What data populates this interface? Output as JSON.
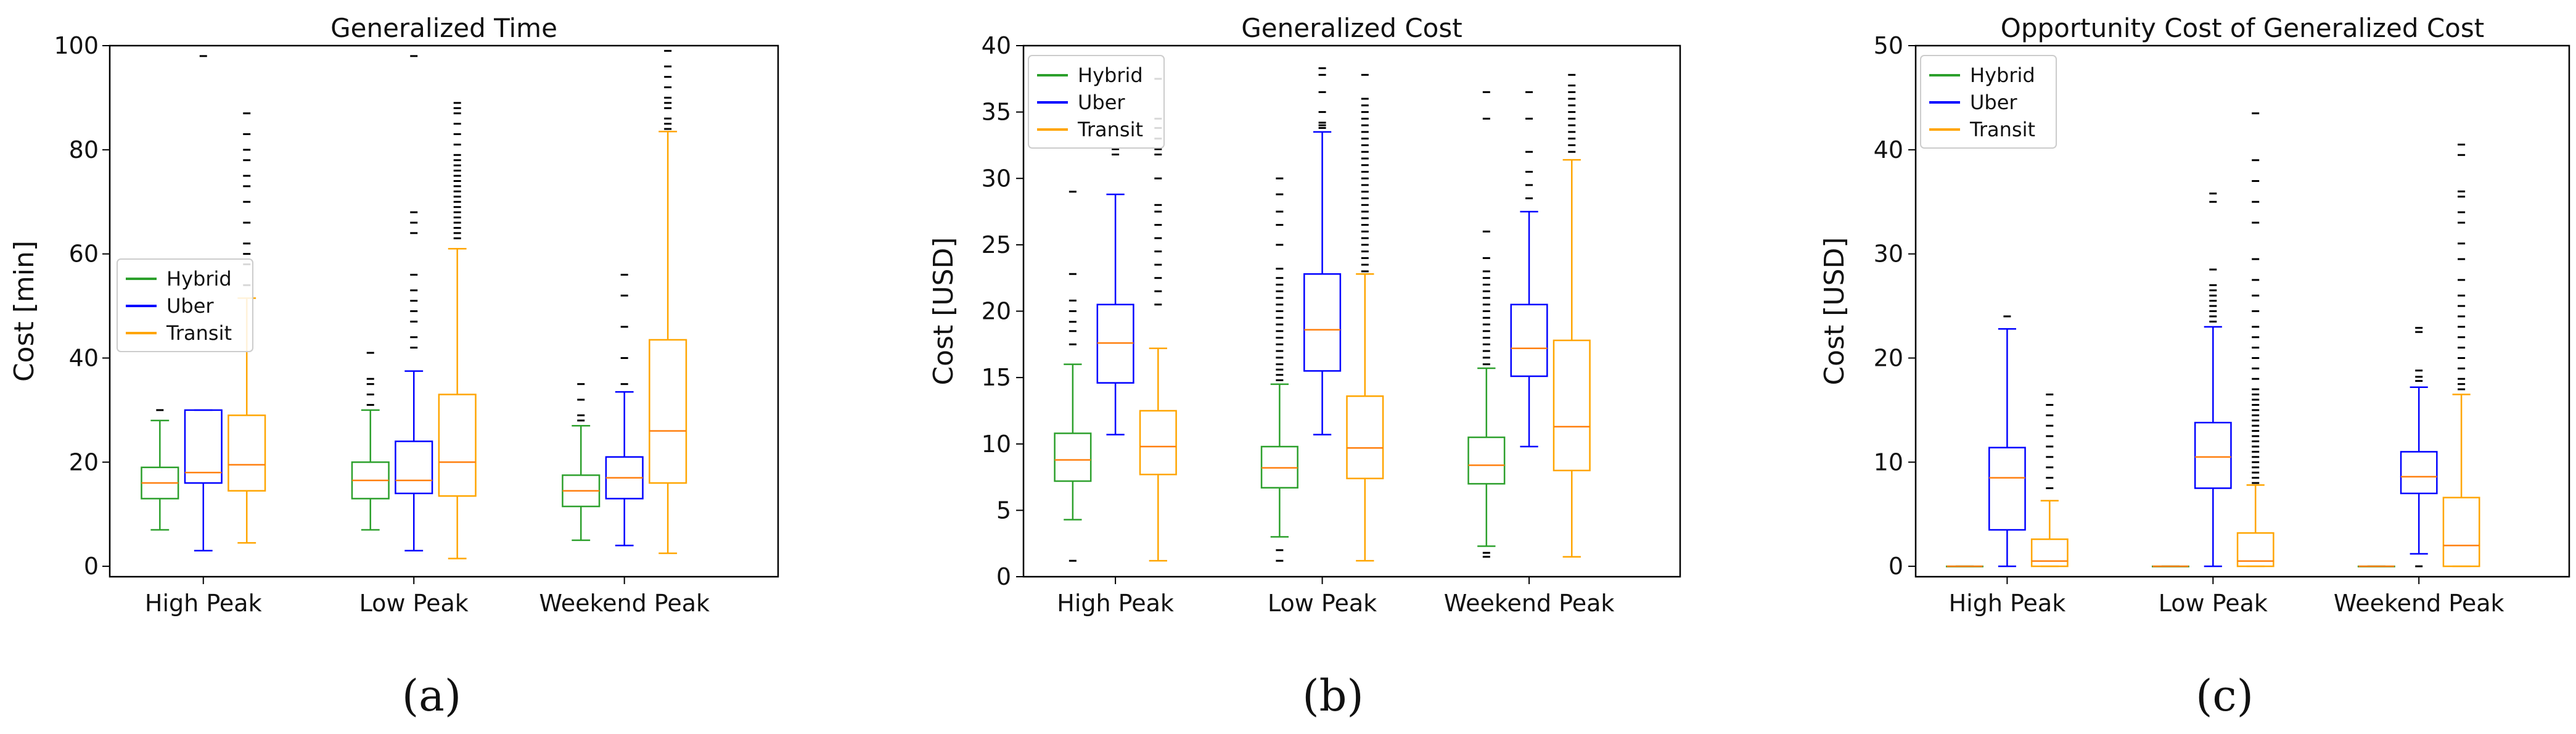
{
  "chart_data": [
    {
      "type": "boxplot",
      "title": "Generalized Time",
      "ylabel": "Cost [min]",
      "xlabel": "",
      "ylim": [
        -2,
        100
      ],
      "yticks": [
        0,
        20,
        40,
        60,
        80,
        100
      ],
      "categories": [
        "High Peak",
        "Low Peak",
        "Weekend Peak"
      ],
      "legend": {
        "placement": "center-left",
        "entries": [
          "Hybrid",
          "Uber",
          "Transit"
        ]
      },
      "caption": "(a)",
      "series": [
        {
          "name": "Hybrid",
          "color": "#2ca02c",
          "boxes": [
            {
              "whislo": 7,
              "q1": 13,
              "med": 16,
              "q3": 19,
              "whishi": 28,
              "fliers": [
                30
              ]
            },
            {
              "whislo": 7,
              "q1": 13,
              "med": 16.5,
              "q3": 20,
              "whishi": 30,
              "fliers": [
                31,
                33,
                35,
                36,
                41
              ]
            },
            {
              "whislo": 5,
              "q1": 11.5,
              "med": 14.5,
              "q3": 17.5,
              "whishi": 27,
              "fliers": [
                28,
                29,
                32,
                35
              ]
            }
          ]
        },
        {
          "name": "Uber",
          "color": "#0000ff",
          "boxes": [
            {
              "whislo": 3,
              "q1": 16,
              "med": 18,
              "q3": 30,
              "whishi": 30,
              "fliers": [
                98
              ]
            },
            {
              "whislo": 3,
              "q1": 14,
              "med": 16.5,
              "q3": 24,
              "whishi": 37.5,
              "fliers": [
                42,
                44,
                47,
                49,
                51,
                53,
                56,
                64,
                66,
                68,
                98
              ]
            },
            {
              "whislo": 4,
              "q1": 13,
              "med": 17,
              "q3": 21,
              "whishi": 33.5,
              "fliers": [
                35,
                40,
                46,
                52,
                56
              ]
            }
          ]
        },
        {
          "name": "Transit",
          "color": "#ffa500",
          "boxes": [
            {
              "whislo": 4.5,
              "q1": 14.5,
              "med": 19.5,
              "q3": 29,
              "whishi": 51.5,
              "fliers": [
                54,
                58,
                60,
                62,
                66,
                70,
                73,
                75,
                78,
                80,
                83,
                87
              ]
            },
            {
              "whislo": 1.5,
              "q1": 13.5,
              "med": 20,
              "q3": 33,
              "whishi": 61,
              "fliers": [
                63,
                64,
                65,
                66,
                67,
                68,
                69,
                70,
                71,
                72,
                73,
                74,
                75,
                76,
                77,
                78,
                79,
                81,
                83,
                85,
                87,
                88,
                89
              ]
            },
            {
              "whislo": 2.5,
              "q1": 16,
              "med": 26,
              "q3": 43.5,
              "whishi": 83.5,
              "fliers": [
                84,
                85,
                86,
                88,
                89,
                90,
                92,
                94,
                96,
                99
              ]
            }
          ]
        }
      ]
    },
    {
      "type": "boxplot",
      "title": "Generalized Cost",
      "ylabel": "Cost [USD]",
      "xlabel": "",
      "ylim": [
        0,
        40
      ],
      "yticks": [
        0,
        5,
        10,
        15,
        20,
        25,
        30,
        35,
        40
      ],
      "categories": [
        "High Peak",
        "Low Peak",
        "Weekend Peak"
      ],
      "legend": {
        "placement": "top-left",
        "entries": [
          "Hybrid",
          "Uber",
          "Transit"
        ]
      },
      "caption": "(b)",
      "series": [
        {
          "name": "Hybrid",
          "color": "#2ca02c",
          "boxes": [
            {
              "whislo": 4.3,
              "q1": 7.2,
              "med": 8.8,
              "q3": 10.8,
              "whishi": 16,
              "fliers": [
                1.2,
                17.5,
                18.5,
                19.2,
                20,
                20.8,
                22.8,
                29
              ]
            },
            {
              "whislo": 3,
              "q1": 6.7,
              "med": 8.2,
              "q3": 9.8,
              "whishi": 14.5,
              "fliers": [
                1.2,
                2.0,
                14.8,
                15.2,
                15.6,
                16,
                16.5,
                17,
                17.5,
                18,
                18.5,
                19,
                19.5,
                20,
                20.5,
                21,
                21.5,
                22,
                22.5,
                23.2,
                25,
                26.5,
                27.5,
                28.8,
                30
              ]
            },
            {
              "whislo": 2.3,
              "q1": 7,
              "med": 8.4,
              "q3": 10.5,
              "whishi": 15.7,
              "fliers": [
                1.5,
                1.8,
                16,
                16.5,
                17,
                17.5,
                18,
                18.5,
                19,
                19.5,
                20,
                20.5,
                21,
                21.5,
                22,
                22.5,
                23,
                24,
                26,
                34.5,
                36.5
              ]
            }
          ]
        },
        {
          "name": "Uber",
          "color": "#0000ff",
          "boxes": [
            {
              "whislo": 10.7,
              "q1": 14.6,
              "med": 17.6,
              "q3": 20.5,
              "whishi": 28.8,
              "fliers": [
                31.8,
                32.2
              ]
            },
            {
              "whislo": 10.7,
              "q1": 15.5,
              "med": 18.6,
              "q3": 22.8,
              "whishi": 33.5,
              "fliers": [
                33.8,
                34,
                34.2,
                35,
                36.5,
                37.8,
                38.3
              ]
            },
            {
              "whislo": 9.8,
              "q1": 15.1,
              "med": 17.2,
              "q3": 20.5,
              "whishi": 27.5,
              "fliers": [
                28.5,
                29.5,
                30.5,
                32,
                34.5,
                36.5
              ]
            }
          ]
        },
        {
          "name": "Transit",
          "color": "#ffa500",
          "boxes": [
            {
              "whislo": 1.2,
              "q1": 7.7,
              "med": 9.8,
              "q3": 12.5,
              "whishi": 17.2,
              "fliers": [
                20.5,
                21.5,
                22.5,
                23.5,
                24.5,
                25.5,
                26.5,
                27.5,
                28,
                30,
                31.8,
                32.2,
                33,
                33.8,
                34.5,
                37.5
              ]
            },
            {
              "whislo": 1.2,
              "q1": 7.4,
              "med": 9.7,
              "q3": 13.6,
              "whishi": 22.8,
              "fliers": [
                23,
                23.5,
                24,
                24.5,
                25,
                25.5,
                26,
                26.5,
                27,
                27.5,
                28,
                28.5,
                29,
                29.5,
                30,
                30.5,
                31,
                31.5,
                32,
                32.5,
                33,
                33.5,
                34,
                34.5,
                35,
                35.5,
                36,
                37.8
              ]
            },
            {
              "whislo": 1.5,
              "q1": 8,
              "med": 11.3,
              "q3": 17.8,
              "whishi": 31.4,
              "fliers": [
                32,
                32.5,
                33,
                33.5,
                34,
                34.5,
                35,
                35.5,
                36,
                36.5,
                37,
                37.8
              ]
            }
          ]
        }
      ]
    },
    {
      "type": "boxplot",
      "title": "Opportunity Cost of Generalized Cost",
      "ylabel": "Cost [USD]",
      "xlabel": "",
      "ylim": [
        -1,
        50
      ],
      "yticks": [
        0,
        10,
        20,
        30,
        40,
        50
      ],
      "categories": [
        "High Peak",
        "Low Peak",
        "Weekend Peak"
      ],
      "legend": {
        "placement": "top-left",
        "entries": [
          "Hybrid",
          "Uber",
          "Transit"
        ]
      },
      "caption": "(c)",
      "series": [
        {
          "name": "Hybrid",
          "color": "#2ca02c",
          "boxes": [
            {
              "whislo": 0,
              "q1": 0,
              "med": 0,
              "q3": 0,
              "whishi": 0,
              "fliers": []
            },
            {
              "whislo": 0,
              "q1": 0,
              "med": 0,
              "q3": 0,
              "whishi": 0,
              "fliers": []
            },
            {
              "whislo": 0,
              "q1": 0,
              "med": 0,
              "q3": 0,
              "whishi": 0,
              "fliers": []
            }
          ]
        },
        {
          "name": "Uber",
          "color": "#0000ff",
          "boxes": [
            {
              "whislo": 0,
              "q1": 3.5,
              "med": 8.5,
              "q3": 11.4,
              "whishi": 22.8,
              "fliers": [
                24
              ]
            },
            {
              "whislo": 0,
              "q1": 7.5,
              "med": 10.5,
              "q3": 13.8,
              "whishi": 23,
              "fliers": [
                23.5,
                24,
                24.5,
                25,
                25.5,
                26,
                26.5,
                27,
                28.5,
                35,
                35.8
              ]
            },
            {
              "whislo": 1.2,
              "q1": 7,
              "med": 8.6,
              "q3": 11,
              "whishi": 17.2,
              "fliers": [
                0,
                17.8,
                18.2,
                18.8,
                22.5,
                22.9
              ]
            }
          ]
        },
        {
          "name": "Transit",
          "color": "#ffa500",
          "boxes": [
            {
              "whislo": 0,
              "q1": 0,
              "med": 0.5,
              "q3": 2.6,
              "whishi": 6.3,
              "fliers": [
                7.5,
                8.5,
                9.5,
                10.5,
                11.5,
                12.5,
                13.5,
                14.5,
                15.5,
                16.5
              ]
            },
            {
              "whislo": 0,
              "q1": 0,
              "med": 0.5,
              "q3": 3.2,
              "whishi": 7.8,
              "fliers": [
                8,
                8.5,
                9,
                9.5,
                10,
                10.5,
                11,
                11.5,
                12,
                12.5,
                13,
                13.5,
                14,
                14.5,
                15,
                15.5,
                16,
                16.5,
                17,
                18,
                19,
                20,
                21,
                22,
                23,
                24.5,
                26,
                27.5,
                29.5,
                33,
                35,
                37,
                39,
                43.5
              ]
            },
            {
              "whislo": 0,
              "q1": 0,
              "med": 2,
              "q3": 6.6,
              "whishi": 16.5,
              "fliers": [
                17,
                17.5,
                18,
                19,
                20,
                21,
                22,
                23,
                24,
                25,
                26,
                27.5,
                29.5,
                31,
                33,
                34,
                35.5,
                36,
                39.5,
                40.5
              ]
            }
          ]
        }
      ]
    }
  ]
}
